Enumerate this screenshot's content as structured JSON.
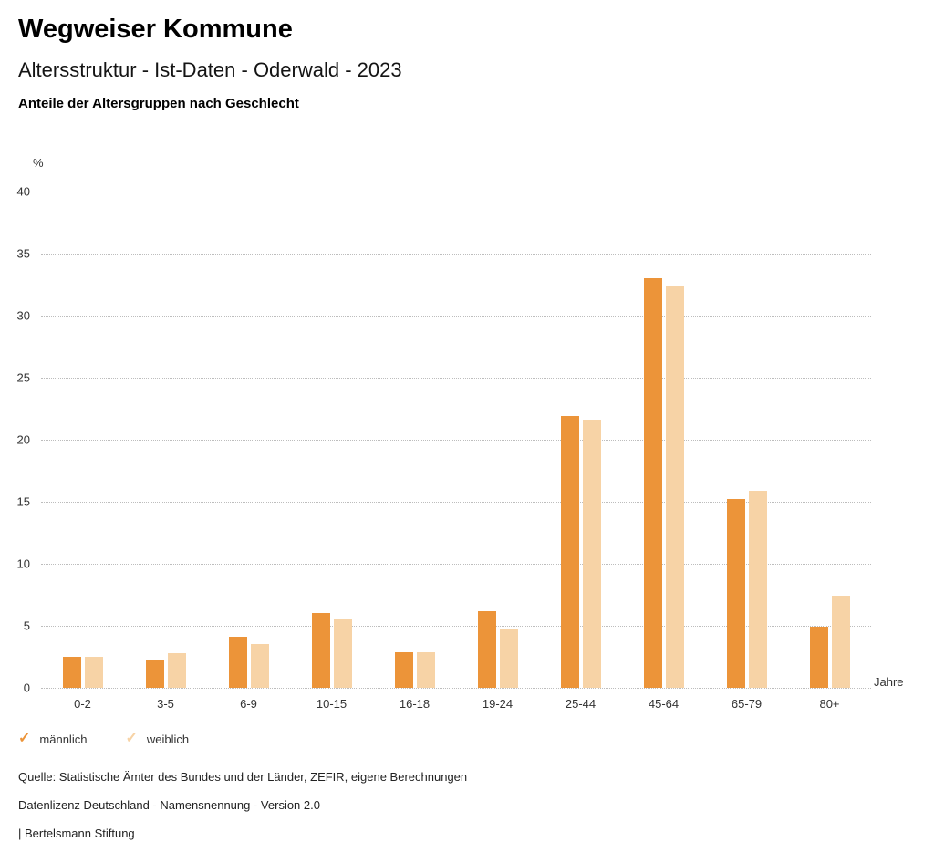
{
  "header": {
    "title": "Wegweiser Kommune",
    "subtitle": "Altersstruktur - Ist-Daten - Oderwald - 2023",
    "chart_heading": "Anteile der Altersgruppen nach Geschlecht"
  },
  "chart_data": {
    "type": "bar",
    "title": "Anteile der Altersgruppen nach Geschlecht",
    "categories": [
      "0-2",
      "3-5",
      "6-9",
      "10-15",
      "16-18",
      "19-24",
      "25-44",
      "45-64",
      "65-79",
      "80+"
    ],
    "series": [
      {
        "name": "männlich",
        "color": "#EC9439",
        "values": [
          2.5,
          2.3,
          4.1,
          6.0,
          2.9,
          6.2,
          21.9,
          33.0,
          15.2,
          4.9
        ]
      },
      {
        "name": "weiblich",
        "color": "#F7D3A6",
        "values": [
          2.5,
          2.8,
          3.5,
          5.5,
          2.9,
          4.7,
          21.6,
          32.4,
          15.9,
          7.4
        ]
      }
    ],
    "ylabel": "%",
    "xlabel": "Jahre",
    "ylim": [
      0,
      40
    ],
    "ytick_step": 5,
    "grid": "dotted horizontal",
    "legend_position": "bottom-left"
  },
  "legend": {
    "items": [
      {
        "label": "männlich",
        "color": "#EC9439",
        "icon": "check-icon"
      },
      {
        "label": "weiblich",
        "color": "#F7D3A6",
        "icon": "check-icon"
      }
    ]
  },
  "footer": {
    "source": "Quelle: Statistische Ämter des Bundes und der Länder, ZEFIR, eigene Berechnungen",
    "license": "Datenlizenz Deutschland - Namensnennung - Version 2.0",
    "attribution": "| Bertelsmann Stiftung"
  }
}
